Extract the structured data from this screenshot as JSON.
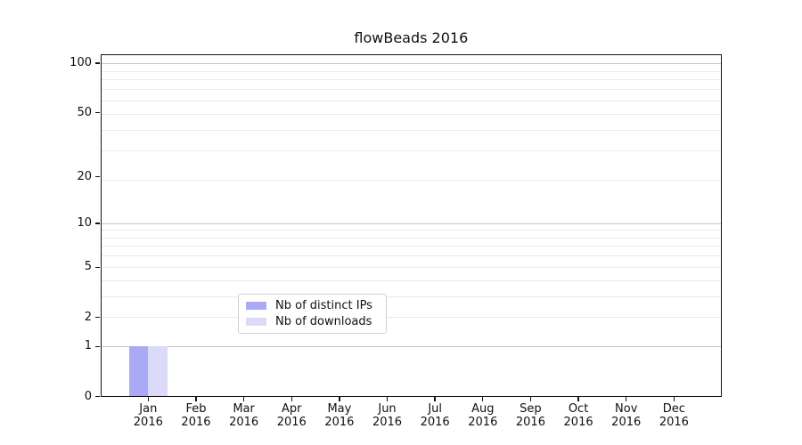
{
  "figure": {
    "title": "flowBeads 2016"
  },
  "chart_data": {
    "type": "bar",
    "title": "flowBeads 2016",
    "x_axis": {
      "categories": [
        "Jan",
        "Feb",
        "Mar",
        "Apr",
        "May",
        "Jun",
        "Jul",
        "Aug",
        "Sep",
        "Oct",
        "Nov",
        "Dec"
      ],
      "year_label": "2016"
    },
    "y_axis": {
      "ticks": [
        0,
        1,
        2,
        5,
        10,
        20,
        50,
        100
      ],
      "scale": "log(1+x)",
      "range": [
        0,
        115
      ]
    },
    "series": [
      {
        "name": "Nb of distinct IPs",
        "color": "#a9a9f4",
        "values": [
          1,
          0,
          0,
          0,
          0,
          0,
          0,
          0,
          0,
          0,
          0,
          0
        ]
      },
      {
        "name": "Nb of downloads",
        "color": "#dbdbf9",
        "values": [
          1,
          0,
          0,
          0,
          0,
          0,
          0,
          0,
          0,
          0,
          0,
          0
        ]
      }
    ],
    "grid": {
      "horizontal": true,
      "vertical": false,
      "major_values": [
        1,
        10,
        100
      ],
      "minor_values": [
        2,
        3,
        4,
        5,
        6,
        7,
        8,
        9,
        19,
        29,
        39,
        49,
        59,
        69,
        79,
        89,
        99
      ]
    },
    "legend_position": "lower center inside"
  },
  "colors": {
    "bar_distinct_ips": "#a9a9f4",
    "bar_downloads": "#dbdbf9",
    "grid_major": "#c4c4c4",
    "grid_minor": "#e9e9e9",
    "axis": "#141414",
    "text": "#111111",
    "background": "#ffffff"
  }
}
